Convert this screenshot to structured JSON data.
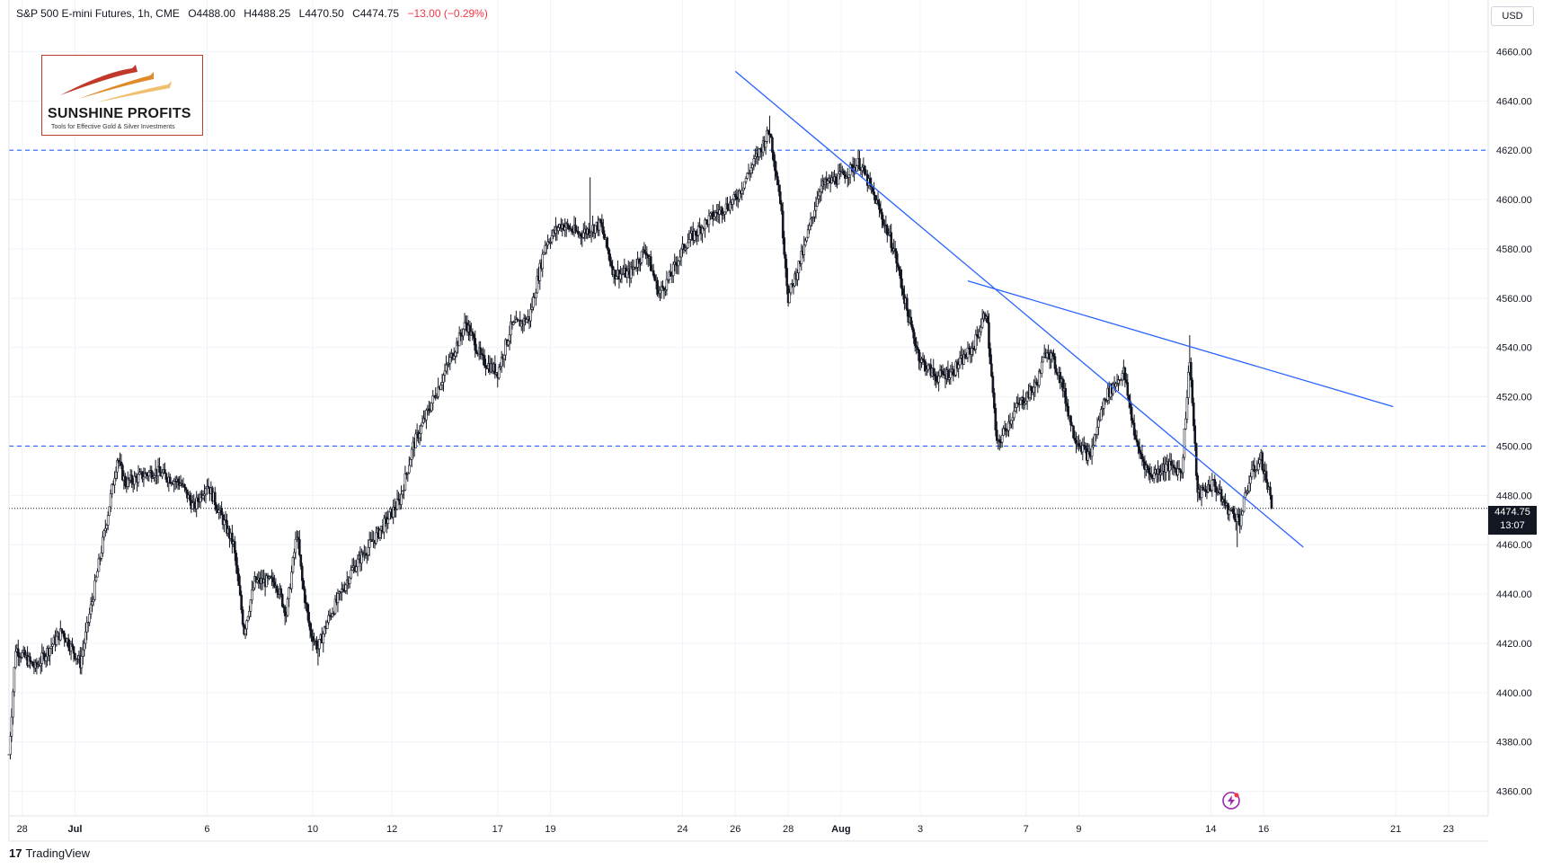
{
  "header": {
    "symbol": "S&P 500 E-mini Futures, 1h, CME",
    "open": "O4488.00",
    "high": "H4488.25",
    "low": "L4470.50",
    "close": "C4474.75",
    "change": "−13.00 (−0.29%)",
    "change_color": "#f23645"
  },
  "currency": "USD",
  "logo": {
    "name": "SUNSHINE PROFITS",
    "tagline": "Tools for Effective Gold & Silver Investments"
  },
  "last_price": {
    "value": "4474.75",
    "countdown": "13:07"
  },
  "branding": {
    "icon": "tradingview-logo-icon",
    "name": "TradingView"
  },
  "colors": {
    "candle": "#131722",
    "trendline": "#2962ff",
    "hline": "#2962ff",
    "grid": "#f0f3fa"
  },
  "chart_data": {
    "type": "candlestick",
    "y_axis": {
      "min": 4350,
      "max": 4670,
      "ticks": [
        "4360.00",
        "4380.00",
        "4400.00",
        "4420.00",
        "4440.00",
        "4460.00",
        "4480.00",
        "4500.00",
        "4520.00",
        "4540.00",
        "4560.00",
        "4580.00",
        "4600.00",
        "4620.00",
        "4640.00",
        "4660.00"
      ],
      "tick_values": [
        4360,
        4380,
        4400,
        4420,
        4440,
        4460,
        4480,
        4500,
        4520,
        4540,
        4560,
        4580,
        4600,
        4620,
        4640,
        4660
      ]
    },
    "x_axis": {
      "labels": [
        "28",
        "Jul",
        "6",
        "10",
        "12",
        "17",
        "19",
        "24",
        "26",
        "28",
        "Aug",
        "3",
        "7",
        "9",
        "14",
        "16",
        "21",
        "23"
      ],
      "label_days": [
        0,
        2,
        7,
        11,
        14,
        18,
        20,
        25,
        27,
        29,
        31,
        34,
        38,
        40,
        45,
        47,
        52,
        54
      ],
      "bold": [
        "Jul",
        "Aug"
      ],
      "range_days": [
        -0.5,
        55.5
      ]
    },
    "grid": true,
    "horizontal_lines": [
      4620,
      4500
    ],
    "last_price_line": 4474.75,
    "trendlines": [
      {
        "points": [
          [
            27.0,
            4652
          ],
          [
            48.5,
            4459
          ]
        ]
      },
      {
        "points": [
          [
            35.8,
            4567
          ],
          [
            51.9,
            4516
          ]
        ]
      }
    ],
    "price_path": [
      [
        -0.5,
        4375
      ],
      [
        -0.25,
        4418
      ],
      [
        0.5,
        4410
      ],
      [
        1.5,
        4425
      ],
      [
        2.2,
        4412
      ],
      [
        2.7,
        4440
      ],
      [
        3.2,
        4470
      ],
      [
        3.6,
        4495
      ],
      [
        3.9,
        4485
      ],
      [
        5.0,
        4490
      ],
      [
        6.0,
        4485
      ],
      [
        6.5,
        4475
      ],
      [
        7.0,
        4485
      ],
      [
        7.6,
        4470
      ],
      [
        8.0,
        4460
      ],
      [
        8.4,
        4425
      ],
      [
        8.8,
        4445
      ],
      [
        9.6,
        4445
      ],
      [
        10.0,
        4432
      ],
      [
        10.4,
        4465
      ],
      [
        10.6,
        4445
      ],
      [
        10.9,
        4425
      ],
      [
        11.2,
        4418
      ],
      [
        11.6,
        4430
      ],
      [
        12.5,
        4450
      ],
      [
        13.5,
        4465
      ],
      [
        14.3,
        4478
      ],
      [
        14.8,
        4500
      ],
      [
        15.6,
        4520
      ],
      [
        16.2,
        4535
      ],
      [
        16.8,
        4550
      ],
      [
        17.4,
        4535
      ],
      [
        18.0,
        4530
      ],
      [
        18.5,
        4548
      ],
      [
        19.2,
        4552
      ],
      [
        19.8,
        4582
      ],
      [
        20.4,
        4590
      ],
      [
        21.1,
        4586
      ],
      [
        21.9,
        4590
      ],
      [
        22.4,
        4570
      ],
      [
        23.0,
        4570
      ],
      [
        23.6,
        4580
      ],
      [
        24.1,
        4562
      ],
      [
        24.5,
        4568
      ],
      [
        25.1,
        4582
      ],
      [
        26.0,
        4592
      ],
      [
        27.0,
        4600
      ],
      [
        27.7,
        4615
      ],
      [
        28.3,
        4628
      ],
      [
        28.7,
        4600
      ],
      [
        29.0,
        4560
      ],
      [
        29.6,
        4580
      ],
      [
        30.2,
        4605
      ],
      [
        31.1,
        4610
      ],
      [
        31.7,
        4615
      ],
      [
        32.3,
        4600
      ],
      [
        33.0,
        4580
      ],
      [
        33.6,
        4550
      ],
      [
        34.0,
        4535
      ],
      [
        34.6,
        4528
      ],
      [
        35.2,
        4530
      ],
      [
        36.0,
        4540
      ],
      [
        36.5,
        4555
      ],
      [
        36.9,
        4500
      ],
      [
        37.6,
        4515
      ],
      [
        38.4,
        4525
      ],
      [
        38.8,
        4540
      ],
      [
        39.3,
        4528
      ],
      [
        39.8,
        4505
      ],
      [
        40.4,
        4495
      ],
      [
        41.0,
        4520
      ],
      [
        41.7,
        4530
      ],
      [
        42.2,
        4500
      ],
      [
        42.7,
        4488
      ],
      [
        43.3,
        4492
      ],
      [
        43.9,
        4490
      ],
      [
        44.2,
        4536
      ],
      [
        44.5,
        4480
      ],
      [
        45.1,
        4485
      ],
      [
        45.6,
        4475
      ],
      [
        46.1,
        4470
      ],
      [
        46.5,
        4488
      ],
      [
        46.9,
        4495
      ],
      [
        47.3,
        4477
      ]
    ],
    "extremes": [
      {
        "day": 28.3,
        "high": 4634
      },
      {
        "day": 21.5,
        "high": 4609
      },
      {
        "day": 44.2,
        "high": 4545
      },
      {
        "day": 11.2,
        "low": 4411
      },
      {
        "day": 46.0,
        "low": 4459
      },
      {
        "day": -0.5,
        "low": 4374
      }
    ]
  }
}
